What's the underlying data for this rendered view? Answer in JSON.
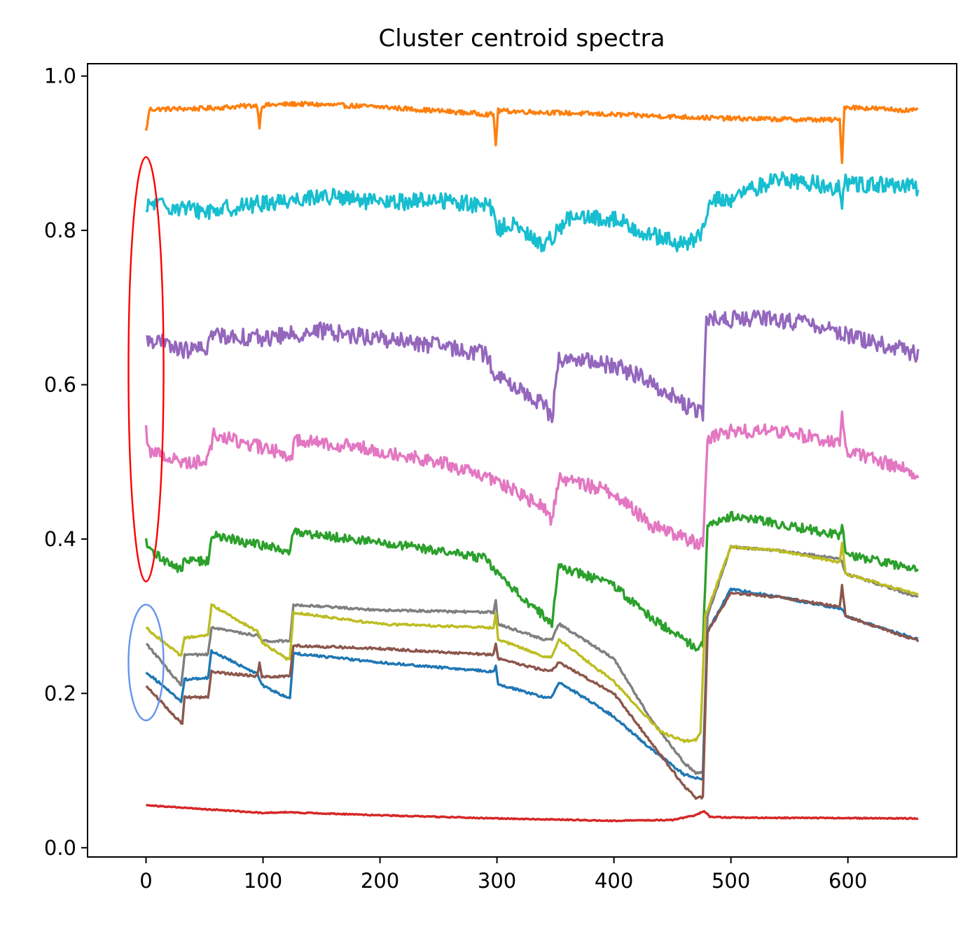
{
  "chart_data": {
    "type": "line",
    "title": "Cluster centroid spectra",
    "xlabel": "",
    "ylabel": "",
    "xlim": [
      -50,
      693
    ],
    "ylim": [
      -0.012,
      1.016
    ],
    "grid": false,
    "legend": "none",
    "x_ticks": [
      {
        "value": 0,
        "label": "0"
      },
      {
        "value": 100,
        "label": "100"
      },
      {
        "value": 200,
        "label": "200"
      },
      {
        "value": 300,
        "label": "300"
      },
      {
        "value": 400,
        "label": "400"
      },
      {
        "value": 500,
        "label": "500"
      },
      {
        "value": 600,
        "label": "600"
      }
    ],
    "y_ticks": [
      {
        "value": 0.0,
        "label": "0.0"
      },
      {
        "value": 0.2,
        "label": "0.2"
      },
      {
        "value": 0.4,
        "label": "0.4"
      },
      {
        "value": 0.6,
        "label": "0.6"
      },
      {
        "value": 0.8,
        "label": "0.8"
      },
      {
        "value": 1.0,
        "label": "1.0"
      }
    ],
    "series": [
      {
        "color": "#ff7f0e",
        "noise": 0.003,
        "x": [
          0,
          3,
          50,
          95,
          97,
          99,
          130,
          200,
          297,
          299,
          301,
          400,
          500,
          593,
          595,
          597,
          660
        ],
        "y": [
          0.928,
          0.957,
          0.958,
          0.962,
          0.935,
          0.962,
          0.964,
          0.96,
          0.95,
          0.912,
          0.955,
          0.95,
          0.945,
          0.943,
          0.89,
          0.96,
          0.955
        ]
      },
      {
        "color": "#17becf",
        "noise": 0.011,
        "x": [
          0,
          3,
          50,
          100,
          150,
          200,
          250,
          295,
          300,
          310,
          340,
          360,
          400,
          430,
          460,
          478,
          482,
          500,
          540,
          593,
          595,
          597,
          660
        ],
        "y": [
          0.82,
          0.835,
          0.825,
          0.835,
          0.845,
          0.835,
          0.84,
          0.83,
          0.8,
          0.81,
          0.78,
          0.815,
          0.815,
          0.795,
          0.78,
          0.8,
          0.84,
          0.84,
          0.868,
          0.855,
          0.825,
          0.862,
          0.855
        ]
      },
      {
        "color": "#9467bd",
        "noise": 0.011,
        "x": [
          0,
          3,
          30,
          50,
          57,
          100,
          150,
          200,
          250,
          290,
          300,
          340,
          347,
          353,
          400,
          430,
          470,
          476,
          479,
          500,
          540,
          580,
          620,
          660
        ],
        "y": [
          0.655,
          0.66,
          0.645,
          0.645,
          0.665,
          0.66,
          0.67,
          0.66,
          0.65,
          0.64,
          0.61,
          0.575,
          0.555,
          0.635,
          0.625,
          0.605,
          0.565,
          0.562,
          0.685,
          0.685,
          0.685,
          0.675,
          0.655,
          0.64
        ]
      },
      {
        "color": "#e377c2",
        "noise": 0.009,
        "x": [
          0,
          3,
          30,
          50,
          55,
          58,
          120,
          125,
          128,
          200,
          250,
          300,
          340,
          347,
          353,
          400,
          430,
          470,
          476,
          480,
          500,
          540,
          593,
          595,
          598,
          660
        ],
        "y": [
          0.54,
          0.515,
          0.5,
          0.5,
          0.52,
          0.535,
          0.51,
          0.51,
          0.53,
          0.515,
          0.5,
          0.475,
          0.44,
          0.425,
          0.48,
          0.46,
          0.42,
          0.395,
          0.395,
          0.53,
          0.54,
          0.54,
          0.525,
          0.56,
          0.515,
          0.485
        ]
      },
      {
        "color": "#2ca02c",
        "noise": 0.006,
        "x": [
          0,
          3,
          30,
          33,
          53,
          56,
          120,
          123,
          126,
          200,
          250,
          290,
          300,
          340,
          347,
          353,
          400,
          430,
          470,
          476,
          480,
          500,
          540,
          593,
          595,
          598,
          660
        ],
        "y": [
          0.395,
          0.385,
          0.36,
          0.372,
          0.372,
          0.405,
          0.385,
          0.38,
          0.41,
          0.395,
          0.385,
          0.375,
          0.355,
          0.3,
          0.292,
          0.365,
          0.34,
          0.3,
          0.26,
          0.262,
          0.42,
          0.43,
          0.42,
          0.405,
          0.42,
          0.38,
          0.36
        ]
      },
      {
        "color": "#7f7f7f",
        "noise": 0.0015,
        "x": [
          0,
          30,
          33,
          53,
          56,
          95,
          100,
          120,
          123,
          126,
          200,
          297,
          299,
          301,
          340,
          347,
          353,
          400,
          430,
          460,
          470,
          476,
          480,
          500,
          540,
          593,
          595,
          598,
          660
        ],
        "y": [
          0.265,
          0.21,
          0.25,
          0.25,
          0.285,
          0.275,
          0.268,
          0.268,
          0.268,
          0.315,
          0.308,
          0.305,
          0.32,
          0.29,
          0.27,
          0.27,
          0.29,
          0.245,
          0.17,
          0.11,
          0.097,
          0.097,
          0.3,
          0.39,
          0.385,
          0.375,
          0.37,
          0.355,
          0.325
        ]
      },
      {
        "color": "#bcbd22",
        "noise": 0.0015,
        "x": [
          0,
          30,
          33,
          53,
          56,
          95,
          100,
          120,
          123,
          126,
          200,
          297,
          299,
          301,
          340,
          347,
          353,
          400,
          440,
          460,
          470,
          474,
          478,
          500,
          540,
          593,
          595,
          598,
          660
        ],
        "y": [
          0.285,
          0.248,
          0.272,
          0.275,
          0.315,
          0.28,
          0.265,
          0.245,
          0.245,
          0.305,
          0.29,
          0.285,
          0.305,
          0.27,
          0.248,
          0.248,
          0.27,
          0.215,
          0.15,
          0.138,
          0.14,
          0.15,
          0.3,
          0.39,
          0.385,
          0.37,
          0.395,
          0.355,
          0.328
        ]
      },
      {
        "color": "#1f77b4",
        "noise": 0.0015,
        "x": [
          0,
          30,
          33,
          53,
          56,
          95,
          100,
          120,
          123,
          126,
          200,
          297,
          299,
          301,
          340,
          347,
          353,
          400,
          430,
          460,
          472,
          476,
          480,
          500,
          540,
          593,
          595,
          598,
          660
        ],
        "y": [
          0.228,
          0.19,
          0.218,
          0.22,
          0.255,
          0.225,
          0.21,
          0.195,
          0.195,
          0.252,
          0.24,
          0.228,
          0.235,
          0.212,
          0.195,
          0.195,
          0.215,
          0.17,
          0.13,
          0.095,
          0.09,
          0.09,
          0.28,
          0.335,
          0.325,
          0.31,
          0.31,
          0.3,
          0.27
        ]
      },
      {
        "color": "#8c564b",
        "noise": 0.0015,
        "x": [
          0,
          31,
          33,
          53,
          56,
          95,
          97,
          99,
          120,
          123,
          126,
          200,
          297,
          299,
          301,
          340,
          347,
          353,
          400,
          440,
          460,
          470,
          476,
          480,
          500,
          540,
          593,
          595,
          598,
          660
        ],
        "y": [
          0.21,
          0.16,
          0.195,
          0.195,
          0.228,
          0.222,
          0.24,
          0.222,
          0.222,
          0.222,
          0.262,
          0.258,
          0.25,
          0.265,
          0.245,
          0.23,
          0.23,
          0.24,
          0.2,
          0.12,
          0.08,
          0.065,
          0.065,
          0.28,
          0.33,
          0.325,
          0.312,
          0.34,
          0.3,
          0.268
        ]
      },
      {
        "color": "#d62728",
        "noise": 0.0007,
        "x": [
          0,
          100,
          120,
          200,
          300,
          400,
          450,
          470,
          477,
          482,
          500,
          660
        ],
        "y": [
          0.055,
          0.045,
          0.046,
          0.042,
          0.038,
          0.035,
          0.036,
          0.042,
          0.048,
          0.04,
          0.039,
          0.038
        ]
      }
    ],
    "annotations": [
      {
        "type": "ellipse",
        "color": "#ff0000",
        "cx": 0,
        "cy": 0.62,
        "rx": 15,
        "ry": 0.275
      },
      {
        "type": "ellipse",
        "color": "#6495ed",
        "cx": 0,
        "cy": 0.24,
        "rx": 15,
        "ry": 0.075
      }
    ]
  }
}
